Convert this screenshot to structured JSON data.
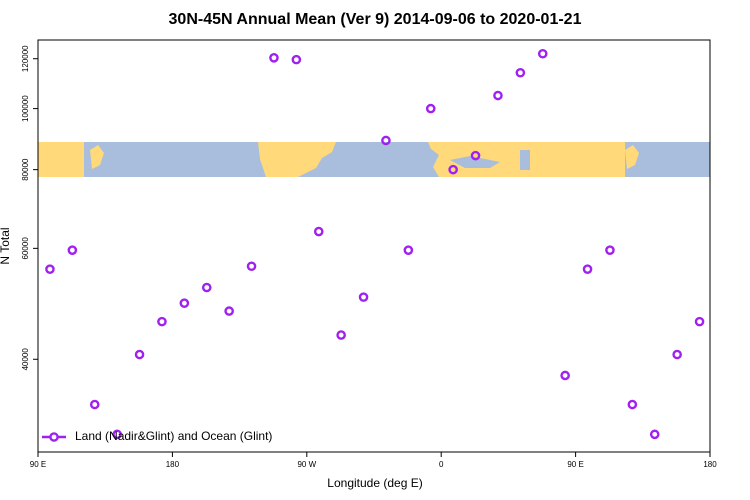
{
  "chart_data": {
    "type": "scatter",
    "title": "30N-45N Annual Mean (Ver 9)   2014-09-06 to 2020-01-21",
    "x_label": "Longitude (deg E)",
    "y_label": "N Total",
    "log_y": true,
    "xlim": [
      90,
      540
    ],
    "ylim": [
      28500,
      128500
    ],
    "xticks": [
      {
        "value": 90,
        "label": "90 E"
      },
      180,
      {
        "value": 270,
        "label": "90 W"
      },
      {
        "value": 360,
        "label": "0"
      },
      {
        "value": 450,
        "label": "90 E"
      },
      {
        "value": 540,
        "label": "180"
      }
    ],
    "yticks": [
      40000,
      60000,
      80000,
      100000,
      120000
    ],
    "legend_position": "bottom-left",
    "series": [
      {
        "name": "Land (Nadir&Glint) and Ocean (Glint)",
        "color": "#a020f0",
        "x": [
          98,
          113,
          128,
          143,
          158,
          173,
          188,
          203,
          218,
          233,
          248,
          263,
          278,
          293,
          308,
          323,
          338,
          353,
          368,
          383,
          398,
          413,
          428,
          443,
          458,
          473,
          488,
          503,
          518,
          533
        ],
        "values": [
          55600,
          59600,
          33900,
          30400,
          40700,
          45900,
          49100,
          52000,
          47700,
          56200,
          120400,
          119600,
          63800,
          43700,
          50200,
          89000,
          59600,
          100000,
          80000,
          84200,
          104900,
          114000,
          122200,
          37700,
          55600,
          59600,
          33900,
          30400,
          40700,
          45900
        ]
      }
    ]
  }
}
